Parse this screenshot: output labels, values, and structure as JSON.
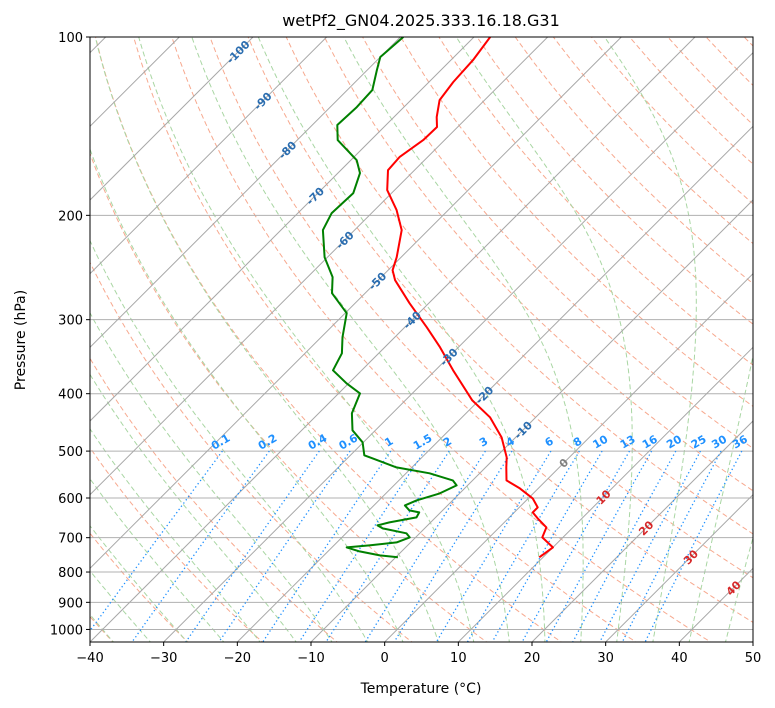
{
  "chart_data": {
    "type": "line",
    "subtype": "skew-t log-p",
    "title": "wetPf2_GN04.2025.333.16.18.G31",
    "xlabel": "Temperature (°C)",
    "ylabel": "Pressure (hPa)",
    "xlim": [
      -40,
      50
    ],
    "ylim": [
      1050,
      100
    ],
    "x_ticks": [
      "−40",
      "−30",
      "−20",
      "−10",
      "0",
      "10",
      "20",
      "30",
      "40",
      "50"
    ],
    "x_tick_values": [
      -40,
      -30,
      -20,
      -10,
      0,
      10,
      20,
      30,
      40,
      50
    ],
    "y_ticks": [
      "100",
      "200",
      "300",
      "400",
      "500",
      "600",
      "700",
      "800",
      "900",
      "1000"
    ],
    "y_tick_values": [
      100,
      200,
      300,
      400,
      500,
      600,
      700,
      800,
      900,
      1000
    ],
    "grid": true,
    "colors": {
      "temperature": "#ff0000",
      "dewpoint": "#008000",
      "isotherm": "#a8a8a8",
      "isobar": "#b0b0b0",
      "dry_adiabat": "#f7a98f",
      "moist_adiabat": "#a9d6a3",
      "mixing_ratio": "#1e90ff",
      "label_cold": "#2a6db0",
      "label_zero": "#808080",
      "label_warm": "#d62728"
    },
    "series": [
      {
        "name": "temperature",
        "pressure": [
          100,
          109.4,
          119.1,
          127.8,
          136.5,
          141.9,
          149.3,
          159.5,
          167.8,
          181.3,
          196.0,
          211.8,
          235.3,
          247.5,
          257.3,
          281.5,
          309.0,
          333.9,
          365.2,
          410.5,
          438.5,
          474.0,
          512.3,
          532.6,
          560.2,
          577.9,
          600.8,
          622.2,
          634.5,
          649.5,
          672.6,
          699.3,
          727.0,
          755.5
        ],
        "values": [
          -67.8,
          -67.0,
          -66.7,
          -66.1,
          -64.2,
          -62.8,
          -62.9,
          -63.8,
          -63.6,
          -61.0,
          -57.0,
          -53.6,
          -50.6,
          -49.4,
          -47.7,
          -42.6,
          -37.0,
          -32.5,
          -27.6,
          -20.9,
          -16.2,
          -11.9,
          -8.5,
          -7.2,
          -5.4,
          -2.5,
          0.6,
          2.5,
          2.5,
          4.0,
          6.4,
          7.2,
          10.0,
          9.5
        ]
      },
      {
        "name": "dewpoint",
        "pressure": [
          100,
          108.1,
          113.7,
          122.9,
          131.3,
          140.8,
          149.3,
          161.4,
          169.7,
          183.4,
          198.3,
          211.8,
          235.3,
          254.3,
          270.7,
          292.5,
          321.2,
          341.9,
          365.2,
          384.2,
          399.5,
          431.6,
          461.2,
          483.2,
          508.3,
          514.2,
          532.6,
          545.1,
          560.2,
          571.2,
          589.3,
          605.5,
          617.4,
          629.6,
          634.5,
          646.9,
          659.6,
          667.3,
          675.1,
          688.3,
          699.3,
          712.9,
          721.3,
          727.0,
          738.3,
          749.9,
          755.5
        ],
        "values": [
          -79.6,
          -80.0,
          -78.7,
          -76.6,
          -76.4,
          -76.6,
          -74.5,
          -69.2,
          -67.0,
          -65.2,
          -65.4,
          -64.3,
          -60.4,
          -56.6,
          -54.5,
          -49.8,
          -47.1,
          -45.0,
          -43.9,
          -40.3,
          -37.1,
          -35.5,
          -33.1,
          -30.1,
          -28.1,
          -26.6,
          -22.1,
          -16.8,
          -12.7,
          -11.5,
          -12.7,
          -14.9,
          -15.8,
          -14.5,
          -12.9,
          -12.6,
          -15.6,
          -16.8,
          -15.7,
          -11.8,
          -10.8,
          -11.9,
          -15.2,
          -18.0,
          -15.7,
          -12.4,
          -9.7
        ]
      }
    ],
    "isobars": [
      200,
      300,
      400,
      500,
      600,
      700,
      800,
      900,
      1000
    ],
    "isotherm_step": 10,
    "isotherm_labels": [
      "-100",
      "-90",
      "-80",
      "-70",
      "-60",
      "-50",
      "-40",
      "-30",
      "-20",
      "-10",
      "0",
      "10",
      "20",
      "30",
      "40"
    ],
    "isotherm_label_values": [
      -100,
      -90,
      -80,
      -70,
      -60,
      -50,
      -40,
      -30,
      -20,
      -10,
      0,
      10,
      20,
      30,
      40
    ],
    "dry_adiabat_theta_K": [
      233,
      243,
      253,
      263,
      273,
      283,
      293,
      303,
      313,
      323,
      333,
      343,
      353,
      363,
      373,
      383,
      393,
      403,
      413,
      423,
      433,
      443,
      453,
      463,
      473
    ],
    "moist_adiabat_T1000_C": [
      -40,
      -35,
      -30,
      -25,
      -20,
      -15,
      -10,
      -5,
      0,
      5,
      10,
      15,
      20,
      25,
      30,
      35,
      40,
      45
    ],
    "mixing_ratio_labels": [
      "0.1",
      "0.2",
      "0.4",
      "0.6",
      "1",
      "1.5",
      "2",
      "3",
      "4",
      "6",
      "8",
      "10",
      "13",
      "16",
      "20",
      "25",
      "30",
      "36"
    ],
    "mixing_ratio_values": [
      0.1,
      0.2,
      0.4,
      0.6,
      1,
      1.5,
      2,
      3,
      4,
      6,
      8,
      10,
      13,
      16,
      20,
      25,
      30,
      36
    ],
    "mixing_ratio_top_hPa": 500
  }
}
